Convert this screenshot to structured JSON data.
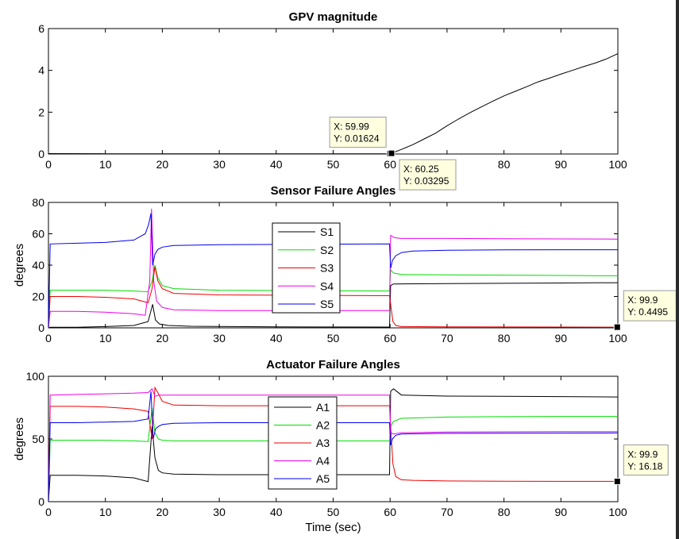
{
  "figure": {
    "xlabel": "Time (sec)"
  },
  "chart_data": [
    {
      "type": "line",
      "title": "GPV magnitude",
      "xlabel": "",
      "ylabel": "",
      "xlim": [
        0,
        100
      ],
      "ylim": [
        0,
        6
      ],
      "x_ticks": [
        0,
        10,
        20,
        30,
        40,
        50,
        60,
        70,
        80,
        90,
        100
      ],
      "y_ticks": [
        0,
        2,
        4,
        6
      ],
      "grid": false,
      "legend": null,
      "series": [
        {
          "name": "",
          "color": "#000000",
          "x": [
            0,
            10,
            20,
            30,
            40,
            50,
            59.99,
            60.25,
            62,
            64,
            66,
            68,
            70,
            72,
            74,
            76,
            78,
            80,
            82,
            84,
            86,
            88,
            90,
            92,
            94,
            96,
            98,
            100
          ],
          "y": [
            0.02,
            0.01,
            0.01,
            0.01,
            0.01,
            0.01,
            0.01624,
            0.03295,
            0.22,
            0.45,
            0.72,
            1.0,
            1.35,
            1.67,
            1.97,
            2.25,
            2.52,
            2.78,
            3.0,
            3.22,
            3.45,
            3.63,
            3.82,
            4.0,
            4.18,
            4.35,
            4.55,
            4.8
          ]
        }
      ],
      "annotations": [
        {
          "x_label": "X: 59.99",
          "y_label": "Y: 0.01624",
          "x": 59.99,
          "y": 0.01624,
          "side": "upper-left"
        },
        {
          "x_label": "X: 60.25",
          "y_label": "Y: 0.03295",
          "x": 60.25,
          "y": 0.03295,
          "side": "lower-right"
        }
      ]
    },
    {
      "type": "line",
      "title": "Sensor Failure Angles",
      "xlabel": "",
      "ylabel": "degrees",
      "xlim": [
        0,
        100
      ],
      "ylim": [
        0,
        80
      ],
      "x_ticks": [
        0,
        10,
        20,
        30,
        40,
        50,
        60,
        70,
        80,
        90,
        100
      ],
      "y_ticks": [
        0,
        20,
        40,
        60,
        80
      ],
      "grid": false,
      "legend": "center",
      "series": [
        {
          "name": "S1",
          "color": "#000000",
          "x": [
            0,
            0.3,
            5,
            10,
            15,
            17.5,
            18.3,
            18.8,
            19.5,
            21,
            25,
            40,
            59.9,
            60.1,
            60.6,
            70,
            80,
            90,
            100
          ],
          "y": [
            0,
            0.4,
            0.4,
            0.8,
            1.5,
            4,
            15,
            5,
            2.5,
            1.5,
            1,
            0.6,
            0.5,
            27,
            28,
            28.2,
            28.4,
            28.6,
            28.8
          ]
        },
        {
          "name": "S2",
          "color": "#00dd00",
          "x": [
            0,
            0.3,
            5,
            10,
            15,
            17.5,
            18.2,
            18.7,
            19.2,
            20,
            22,
            30,
            59.9,
            60.1,
            60.6,
            62,
            70,
            80,
            90,
            100
          ],
          "y": [
            0,
            24,
            24,
            24,
            23.5,
            23,
            30,
            40,
            32,
            27,
            25,
            24,
            23.5,
            37,
            35,
            34,
            33.8,
            33.6,
            33.4,
            33.2
          ]
        },
        {
          "name": "S3",
          "color": "#ee0000",
          "x": [
            0,
            0.3,
            5,
            10,
            15,
            17.5,
            18.2,
            18.7,
            19.2,
            20,
            22,
            30,
            59.9,
            60.1,
            60.5,
            61,
            62,
            70,
            80,
            90,
            100
          ],
          "y": [
            0,
            20,
            20,
            19.5,
            18.5,
            16,
            25,
            39,
            30,
            25,
            22,
            21,
            20.5,
            15,
            4,
            1.5,
            0.8,
            0.6,
            0.55,
            0.5,
            0.45
          ]
        },
        {
          "name": "S4",
          "color": "#ee00ee",
          "x": [
            0,
            0.3,
            5,
            10,
            15,
            17,
            17.8,
            18.1,
            18.5,
            19,
            20,
            22,
            30,
            59.9,
            60.1,
            60.8,
            62,
            70,
            80,
            90,
            100
          ],
          "y": [
            0,
            10.5,
            10.5,
            10,
            9,
            8,
            30,
            76,
            30,
            17,
            13,
            11.5,
            11,
            11,
            59,
            57.5,
            57,
            57,
            56.8,
            56.7,
            56.6
          ]
        },
        {
          "name": "S5",
          "color": "#0000ee",
          "x": [
            0,
            0.3,
            5,
            10,
            15,
            17,
            17.6,
            18.0,
            18.3,
            18.7,
            19.2,
            20,
            22,
            30,
            59.9,
            60.1,
            60.4,
            61,
            62,
            64,
            70,
            80,
            90,
            100
          ],
          "y": [
            0,
            53.5,
            54,
            54.5,
            56,
            60,
            66,
            73,
            40,
            47,
            50,
            51.5,
            52.5,
            53,
            53.5,
            38,
            43,
            46,
            48,
            49,
            49.5,
            49.7,
            49.8,
            49.8
          ]
        }
      ],
      "annotations": [
        {
          "x_label": "X: 99.9",
          "y_label": "Y: 0.4495",
          "x": 99.9,
          "y": 0.4495,
          "side": "upper-right"
        }
      ]
    },
    {
      "type": "line",
      "title": "Actuator Failure Angles",
      "xlabel": "Time (sec)",
      "ylabel": "degrees",
      "xlim": [
        0,
        100
      ],
      "ylim": [
        0,
        100
      ],
      "x_ticks": [
        0,
        10,
        20,
        30,
        40,
        50,
        60,
        70,
        80,
        90,
        100
      ],
      "y_ticks": [
        0,
        50,
        100
      ],
      "grid": false,
      "legend": "center",
      "series": [
        {
          "name": "A1",
          "color": "#000000",
          "x": [
            0,
            0.3,
            5,
            10,
            15,
            17.5,
            18.2,
            18.7,
            19.3,
            20,
            22,
            30,
            59.9,
            60.1,
            60.6,
            62,
            70,
            80,
            90,
            100
          ],
          "y": [
            0,
            21,
            21,
            20.5,
            19,
            16,
            60,
            35,
            25,
            23,
            22,
            21.5,
            21.5,
            88,
            90,
            85,
            84.2,
            84,
            83.8,
            83.5
          ]
        },
        {
          "name": "A2",
          "color": "#00dd00",
          "x": [
            0,
            0.3,
            5,
            10,
            15,
            17.5,
            18.2,
            18.7,
            19.3,
            20,
            22,
            30,
            59.9,
            60.1,
            60.6,
            62,
            70,
            80,
            90,
            100
          ],
          "y": [
            0,
            49,
            49,
            49,
            48.5,
            48,
            75,
            55,
            50,
            49,
            48.5,
            48.5,
            48.5,
            60,
            64,
            66.5,
            67.5,
            67.8,
            68,
            68
          ]
        },
        {
          "name": "A3",
          "color": "#ee0000",
          "x": [
            0,
            0.3,
            5,
            10,
            15,
            17.5,
            18.2,
            18.7,
            19.2,
            20,
            22,
            30,
            59.9,
            60.1,
            60.5,
            61,
            62,
            64,
            70,
            80,
            90,
            100
          ],
          "y": [
            0,
            76,
            76,
            75.5,
            74,
            72,
            50,
            91,
            87,
            80,
            77,
            76.5,
            76.5,
            60,
            30,
            20,
            17.5,
            17,
            16.5,
            16.3,
            16.2,
            16.18
          ]
        },
        {
          "name": "A4",
          "color": "#ee00ee",
          "x": [
            0,
            0.3,
            5,
            10,
            15,
            17.5,
            18.2,
            18.7,
            19.3,
            20,
            22,
            30,
            59.9,
            60.1,
            60.6,
            62,
            70,
            80,
            90,
            100
          ],
          "y": [
            0,
            85,
            85.5,
            86,
            86.5,
            87,
            90,
            84,
            85,
            85,
            85,
            85,
            85,
            55,
            54,
            55,
            55.5,
            55.7,
            55.8,
            55.8
          ]
        },
        {
          "name": "A5",
          "color": "#0000ee",
          "x": [
            0,
            0.3,
            5,
            10,
            15,
            17.5,
            18.0,
            18.4,
            18.8,
            19.3,
            20,
            22,
            30,
            59.9,
            60.1,
            60.4,
            61,
            62,
            70,
            80,
            90,
            100
          ],
          "y": [
            0,
            63,
            63,
            63.5,
            64,
            66,
            88,
            50,
            58,
            60,
            61.5,
            62.5,
            63,
            63,
            45,
            50,
            53,
            54,
            54.5,
            54.6,
            54.7,
            54.8
          ]
        }
      ],
      "annotations": [
        {
          "x_label": "X: 99.9",
          "y_label": "Y: 16.18",
          "x": 99.9,
          "y": 16.18,
          "side": "upper-right"
        }
      ]
    }
  ]
}
